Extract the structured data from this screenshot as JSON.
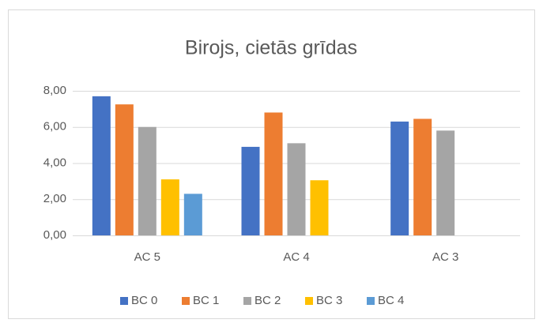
{
  "chart_data": {
    "type": "bar",
    "title": "Birojs, cietās grīdas",
    "categories": [
      "AC 5",
      "AC 4",
      "AC 3"
    ],
    "series": [
      {
        "name": "BC 0",
        "color": "#4472c4",
        "values": [
          7.7,
          4.9,
          6.3
        ]
      },
      {
        "name": "BC 1",
        "color": "#ed7d31",
        "values": [
          7.25,
          6.8,
          6.45
        ]
      },
      {
        "name": "BC 2",
        "color": "#a5a5a5",
        "values": [
          6.0,
          5.1,
          5.8
        ]
      },
      {
        "name": "BC 3",
        "color": "#ffc000",
        "values": [
          3.1,
          3.05,
          null
        ]
      },
      {
        "name": "BC 4",
        "color": "#5b9bd5",
        "values": [
          2.3,
          null,
          null
        ]
      }
    ],
    "ylim": [
      0,
      8
    ],
    "yticks": [
      {
        "value": 0,
        "label": "0,00"
      },
      {
        "value": 2,
        "label": "2,00"
      },
      {
        "value": 4,
        "label": "4,00"
      },
      {
        "value": 6,
        "label": "6,00"
      },
      {
        "value": 8,
        "label": "8,00"
      }
    ],
    "grid": true,
    "legend": "bottom"
  }
}
